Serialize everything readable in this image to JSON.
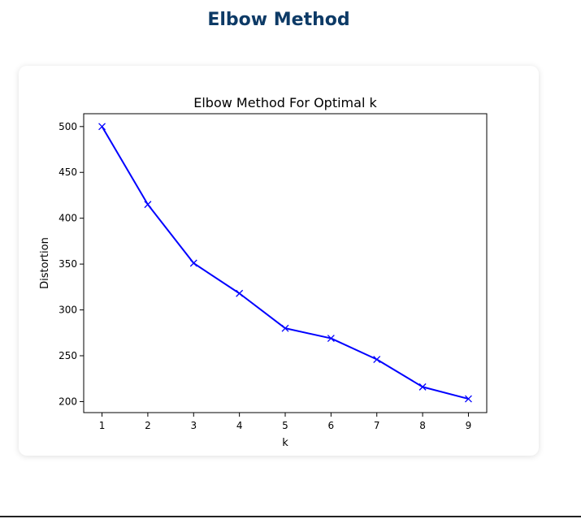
{
  "page": {
    "title": "Elbow Method"
  },
  "colors": {
    "title": "#0d3a66",
    "series": "#0000ff"
  },
  "chart_data": {
    "type": "line",
    "title": "Elbow Method For Optimal k",
    "xlabel": "k",
    "ylabel": "Distortion",
    "x": [
      1,
      2,
      3,
      4,
      5,
      6,
      7,
      8,
      9
    ],
    "series": [
      {
        "values": [
          500,
          415,
          351,
          318,
          280,
          269,
          246,
          216,
          203
        ],
        "marker": "x",
        "color": "#0000ff"
      }
    ],
    "xlim": [
      0.6,
      9.4
    ],
    "ylim": [
      188,
      514
    ],
    "xticks": [
      1,
      2,
      3,
      4,
      5,
      6,
      7,
      8,
      9
    ],
    "yticks": [
      200,
      250,
      300,
      350,
      400,
      450,
      500
    ],
    "grid": false,
    "legend": "none"
  }
}
